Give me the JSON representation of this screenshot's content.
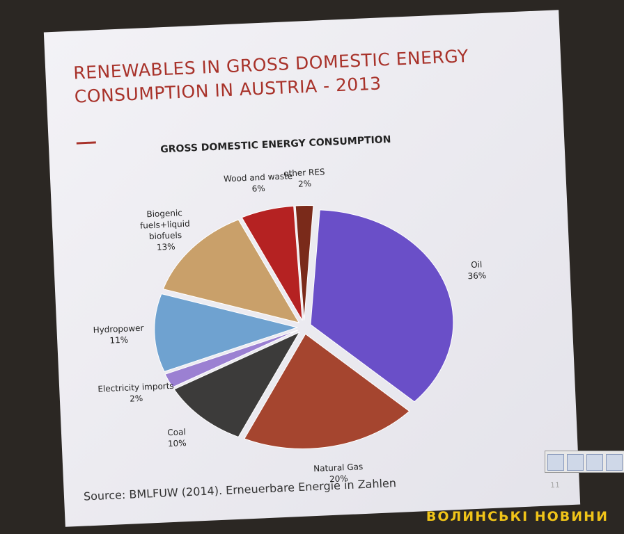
{
  "slide": {
    "title_lines": [
      "RENEWABLES IN GROSS DOMESTIC ENERGY",
      "CONSUMPTION  IN AUSTRIA - 2013"
    ],
    "source": "Source: BMLFUW (2014). Erneuerbare Energie in Zahlen",
    "page_number": "11"
  },
  "watermark": "ВОЛИНСЬКІ НОВИНИ",
  "chart_data": {
    "type": "pie",
    "title": "GROSS DOMESTIC ENERGY CONSUMPTION",
    "categories": [
      "Oil",
      "Natural Gas",
      "Coal",
      "Electricity imports",
      "Hydropower",
      "Biogenic fuels+liquid biofuels",
      "Wood and waste",
      "other RES"
    ],
    "values": [
      36,
      20,
      10,
      2,
      11,
      13,
      6,
      2
    ],
    "value_labels": [
      "36%",
      "20%",
      "10%",
      "2%",
      "11%",
      "13%",
      "6%",
      "2%"
    ],
    "colors": [
      "#6a4fc8",
      "#a5452f",
      "#3c3b3a",
      "#9b80d2",
      "#6fa2d0",
      "#c9a06a",
      "#b52222",
      "#7a2a1a"
    ]
  }
}
